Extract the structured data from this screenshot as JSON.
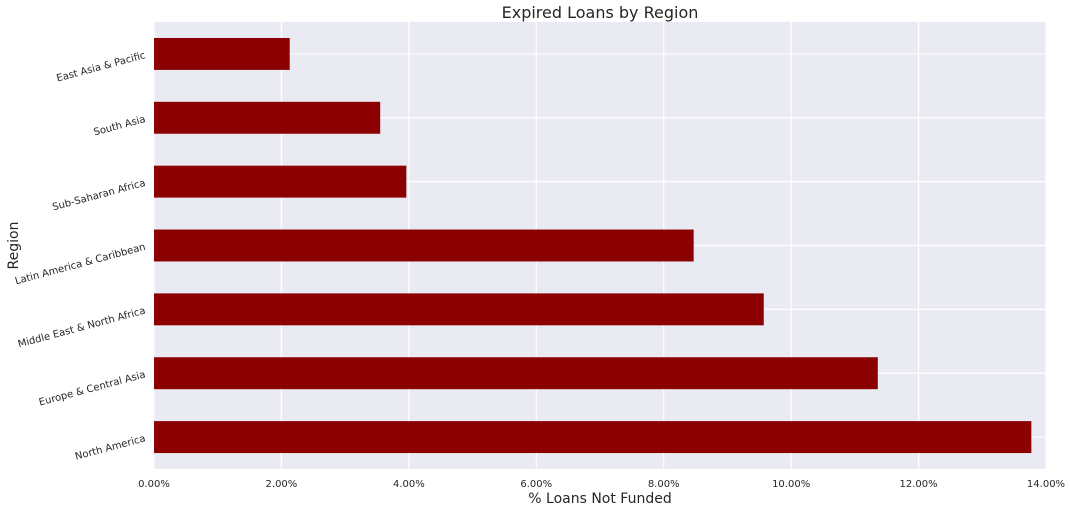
{
  "chart_data": {
    "type": "bar",
    "orientation": "horizontal",
    "title": "Expired Loans by Region",
    "xlabel": "% Loans Not Funded",
    "ylabel": "Region",
    "categories": [
      "East Asia & Pacific",
      "South Asia",
      "Sub-Saharan Africa",
      "Latin America & Caribbean",
      "Middle East & North Africa",
      "Europe & Central Asia",
      "North America"
    ],
    "values": [
      2.13,
      3.55,
      3.96,
      8.47,
      9.57,
      11.36,
      13.77
    ],
    "xlim": [
      0,
      14
    ],
    "xticks": [
      "0.00%",
      "2.00%",
      "4.00%",
      "6.00%",
      "8.00%",
      "10.00%",
      "12.00%",
      "14.00%"
    ],
    "grid": true,
    "bar_color": "#8b0000",
    "background_color": "#eaeaf2",
    "grid_color": "#ffffff"
  }
}
